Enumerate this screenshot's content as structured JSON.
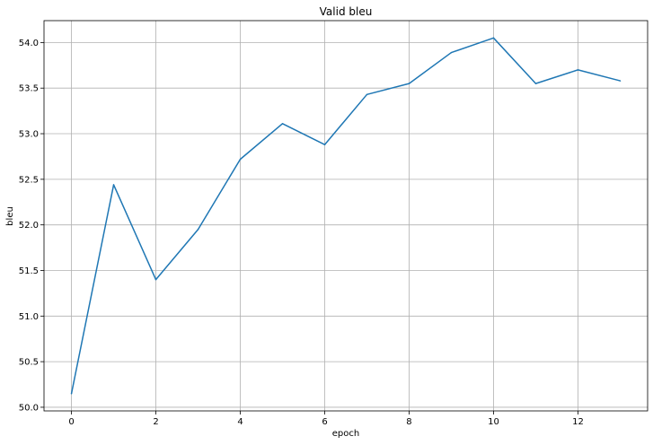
{
  "chart_data": {
    "type": "line",
    "title": "Valid bleu",
    "xlabel": "epoch",
    "ylabel": "bleu",
    "grid": true,
    "xlim": [
      -0.65,
      13.65
    ],
    "ylim": [
      49.96,
      54.24
    ],
    "xticks": [
      0,
      2,
      4,
      6,
      8,
      10,
      12
    ],
    "yticks": [
      50.0,
      50.5,
      51.0,
      51.5,
      52.0,
      52.5,
      53.0,
      53.5,
      54.0
    ],
    "ytick_labels": [
      "50.0",
      "50.5",
      "51.0",
      "51.5",
      "52.0",
      "52.5",
      "53.0",
      "53.5",
      "54.0"
    ],
    "series": [
      {
        "color": "#1f77b4",
        "x": [
          0,
          1,
          2,
          3,
          4,
          5,
          6,
          7,
          8,
          9,
          10,
          11,
          12,
          13
        ],
        "y": [
          50.15,
          52.44,
          51.4,
          51.95,
          52.72,
          53.11,
          52.88,
          53.43,
          53.55,
          53.89,
          54.05,
          53.55,
          53.7,
          53.58
        ]
      }
    ]
  }
}
